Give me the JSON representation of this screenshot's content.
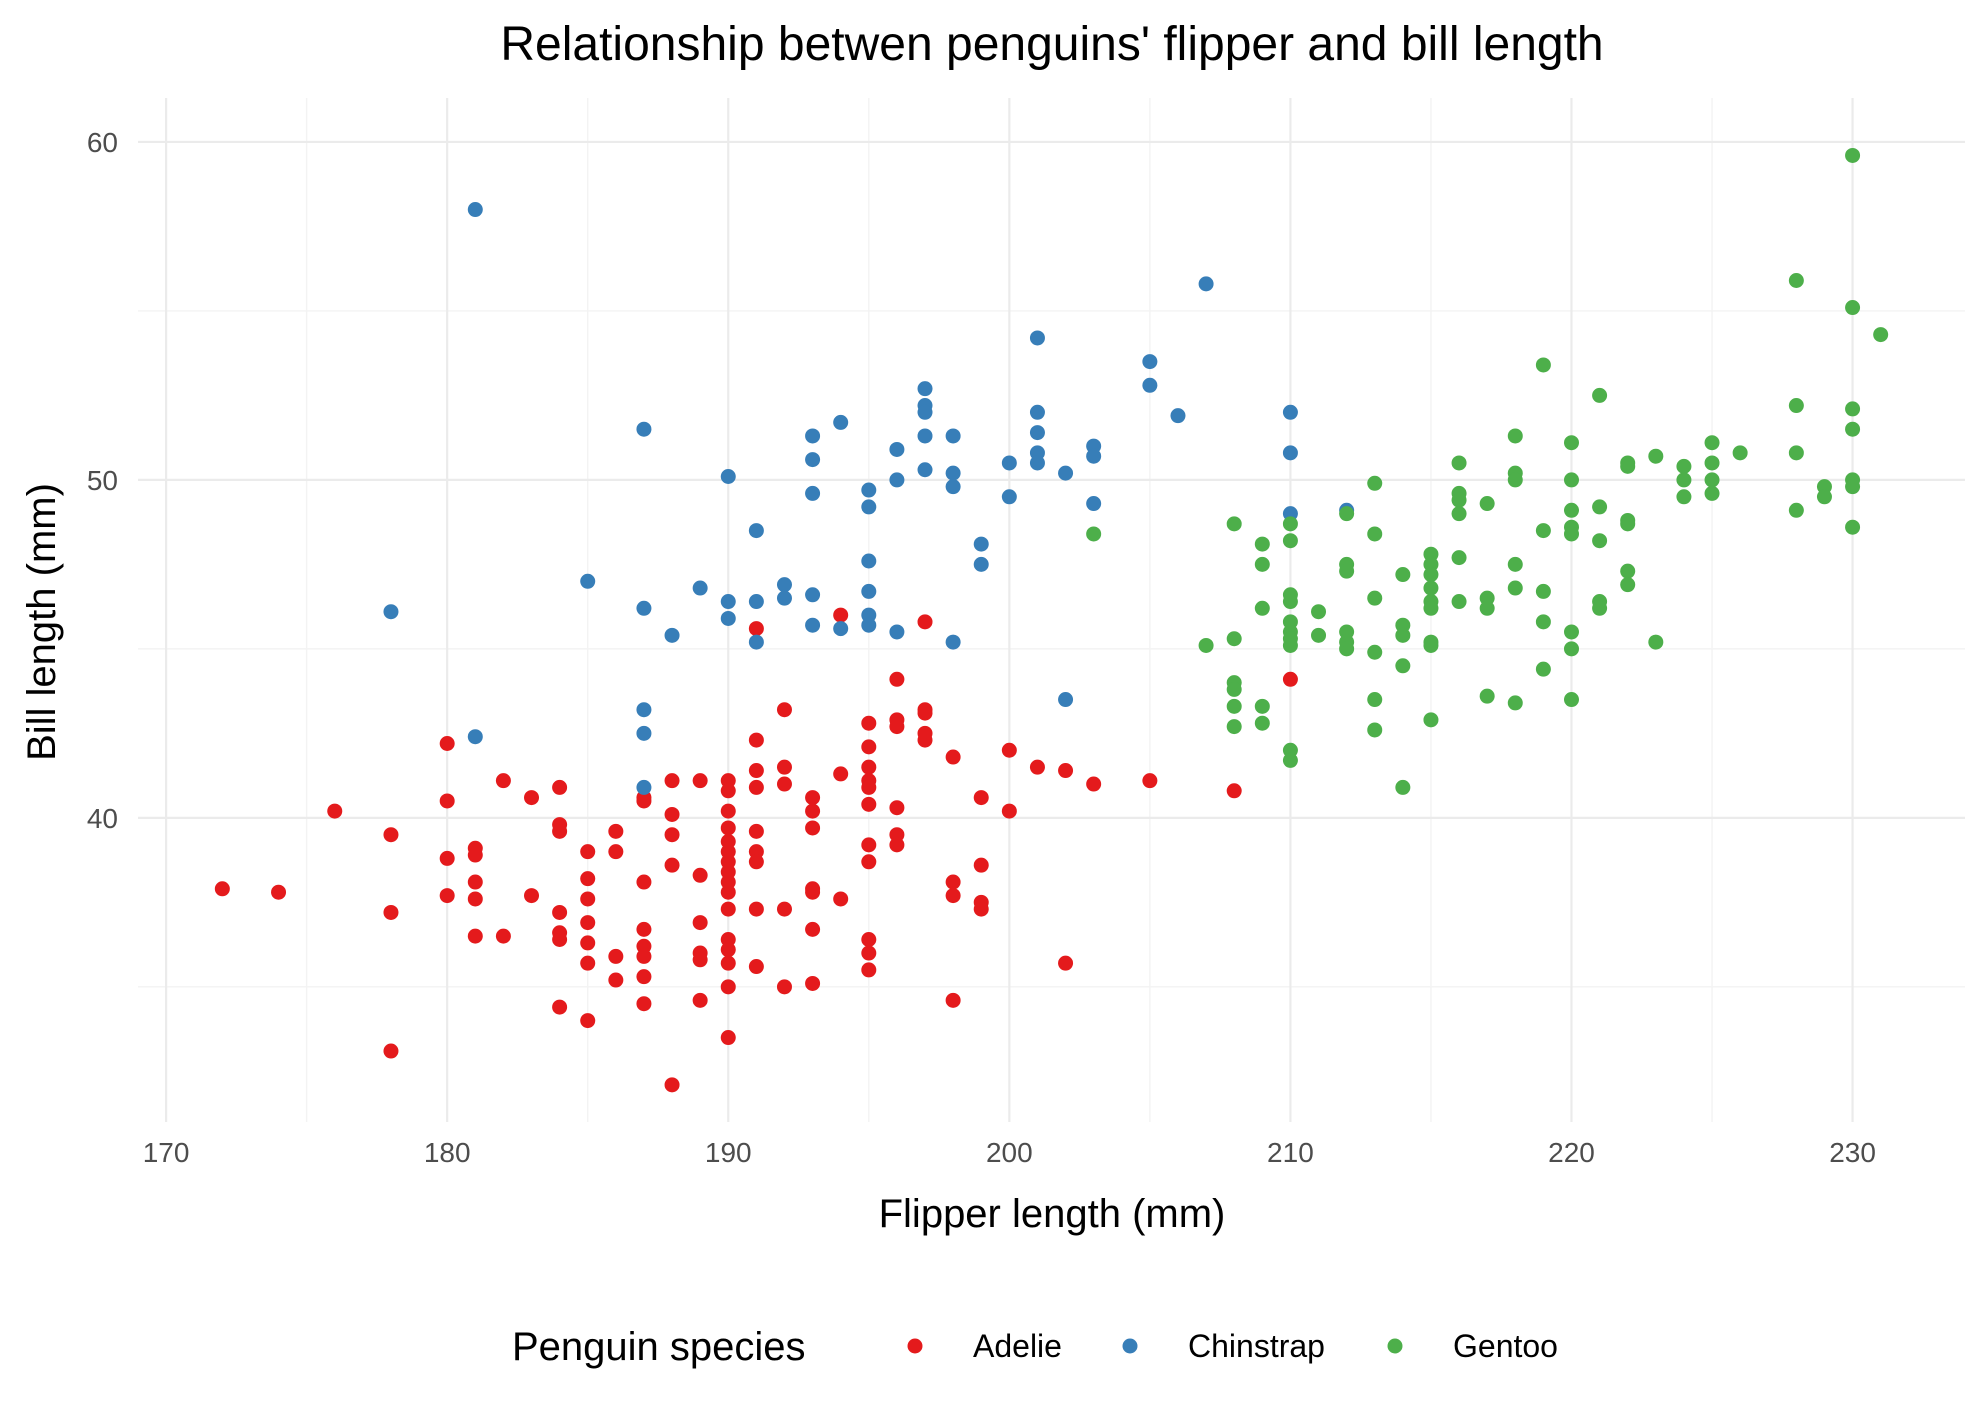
{
  "chart_data": {
    "type": "scatter",
    "title": "Relationship betwen penguins' flipper and bill length",
    "xlabel": "Flipper length (mm)",
    "ylabel": "Bill length (mm)",
    "xlim": [
      169,
      234
    ],
    "ylim": [
      31,
      61.3
    ],
    "x_ticks": [
      170,
      180,
      190,
      200,
      210,
      220,
      230
    ],
    "y_ticks": [
      40,
      50,
      60
    ],
    "grid": true,
    "legend": {
      "title": "Penguin species",
      "position": "bottom"
    },
    "series": [
      {
        "name": "Adelie",
        "color": "#e41a1c",
        "points": [
          [
            172,
            37.9
          ],
          [
            174,
            37.8
          ],
          [
            176,
            40.2
          ],
          [
            178,
            39.5
          ],
          [
            178,
            37.2
          ],
          [
            178,
            33.1
          ],
          [
            180,
            42.2
          ],
          [
            180,
            40.5
          ],
          [
            180,
            38.8
          ],
          [
            180,
            37.7
          ],
          [
            181,
            39.1
          ],
          [
            181,
            38.9
          ],
          [
            181,
            38.1
          ],
          [
            181,
            37.6
          ],
          [
            181,
            36.5
          ],
          [
            182,
            41.1
          ],
          [
            182,
            36.5
          ],
          [
            183,
            40.6
          ],
          [
            183,
            37.7
          ],
          [
            184,
            40.9
          ],
          [
            184,
            39.8
          ],
          [
            184,
            39.6
          ],
          [
            184,
            37.2
          ],
          [
            184,
            36.6
          ],
          [
            184,
            36.4
          ],
          [
            184,
            34.4
          ],
          [
            185,
            39.0
          ],
          [
            185,
            38.2
          ],
          [
            185,
            37.6
          ],
          [
            185,
            36.9
          ],
          [
            185,
            36.3
          ],
          [
            185,
            35.7
          ],
          [
            185,
            34.0
          ],
          [
            186,
            39.6
          ],
          [
            186,
            39.0
          ],
          [
            186,
            35.9
          ],
          [
            186,
            35.2
          ],
          [
            187,
            40.6
          ],
          [
            187,
            40.5
          ],
          [
            187,
            38.1
          ],
          [
            187,
            36.7
          ],
          [
            187,
            36.2
          ],
          [
            187,
            35.9
          ],
          [
            187,
            35.3
          ],
          [
            187,
            34.5
          ],
          [
            188,
            41.1
          ],
          [
            188,
            40.1
          ],
          [
            188,
            39.5
          ],
          [
            188,
            38.6
          ],
          [
            188,
            32.1
          ],
          [
            189,
            41.1
          ],
          [
            189,
            38.3
          ],
          [
            189,
            36.9
          ],
          [
            189,
            36.0
          ],
          [
            189,
            35.8
          ],
          [
            189,
            34.6
          ],
          [
            190,
            41.1
          ],
          [
            190,
            40.8
          ],
          [
            190,
            40.2
          ],
          [
            190,
            39.7
          ],
          [
            190,
            39.3
          ],
          [
            190,
            39.0
          ],
          [
            190,
            38.7
          ],
          [
            190,
            38.4
          ],
          [
            190,
            38.1
          ],
          [
            190,
            37.8
          ],
          [
            190,
            37.3
          ],
          [
            190,
            36.4
          ],
          [
            190,
            36.1
          ],
          [
            190,
            35.7
          ],
          [
            190,
            35.0
          ],
          [
            190,
            33.5
          ],
          [
            191,
            45.6
          ],
          [
            191,
            42.3
          ],
          [
            191,
            41.4
          ],
          [
            191,
            40.9
          ],
          [
            191,
            39.6
          ],
          [
            191,
            39.0
          ],
          [
            191,
            38.7
          ],
          [
            191,
            37.3
          ],
          [
            191,
            35.6
          ],
          [
            192,
            43.2
          ],
          [
            192,
            41.5
          ],
          [
            192,
            41.0
          ],
          [
            192,
            37.3
          ],
          [
            192,
            35.0
          ],
          [
            193,
            40.6
          ],
          [
            193,
            40.2
          ],
          [
            193,
            39.7
          ],
          [
            193,
            37.9
          ],
          [
            193,
            37.8
          ],
          [
            193,
            36.7
          ],
          [
            193,
            35.1
          ],
          [
            194,
            46.0
          ],
          [
            194,
            41.3
          ],
          [
            194,
            37.6
          ],
          [
            195,
            42.8
          ],
          [
            195,
            42.1
          ],
          [
            195,
            41.5
          ],
          [
            195,
            41.1
          ],
          [
            195,
            40.9
          ],
          [
            195,
            40.4
          ],
          [
            195,
            39.2
          ],
          [
            195,
            38.7
          ],
          [
            195,
            36.4
          ],
          [
            195,
            36.0
          ],
          [
            195,
            35.5
          ],
          [
            196,
            44.1
          ],
          [
            196,
            42.9
          ],
          [
            196,
            42.7
          ],
          [
            196,
            40.3
          ],
          [
            196,
            39.5
          ],
          [
            196,
            39.2
          ],
          [
            197,
            45.8
          ],
          [
            197,
            43.2
          ],
          [
            197,
            43.1
          ],
          [
            197,
            42.5
          ],
          [
            197,
            42.3
          ],
          [
            198,
            41.8
          ],
          [
            198,
            38.1
          ],
          [
            198,
            37.7
          ],
          [
            198,
            34.6
          ],
          [
            199,
            40.6
          ],
          [
            199,
            38.6
          ],
          [
            199,
            37.5
          ],
          [
            199,
            37.3
          ],
          [
            200,
            42.0
          ],
          [
            200,
            40.2
          ],
          [
            201,
            41.5
          ],
          [
            202,
            41.4
          ],
          [
            202,
            35.7
          ],
          [
            203,
            41.0
          ],
          [
            205,
            41.1
          ],
          [
            208,
            40.8
          ],
          [
            210,
            44.1
          ]
        ]
      },
      {
        "name": "Chinstrap",
        "color": "#377eb8",
        "points": [
          [
            178,
            46.1
          ],
          [
            181,
            58.0
          ],
          [
            181,
            42.4
          ],
          [
            185,
            47.0
          ],
          [
            187,
            51.5
          ],
          [
            187,
            46.2
          ],
          [
            187,
            43.2
          ],
          [
            187,
            42.5
          ],
          [
            187,
            40.9
          ],
          [
            188,
            45.4
          ],
          [
            189,
            46.8
          ],
          [
            190,
            50.1
          ],
          [
            190,
            46.4
          ],
          [
            190,
            45.9
          ],
          [
            191,
            48.5
          ],
          [
            191,
            46.4
          ],
          [
            191,
            45.2
          ],
          [
            192,
            46.9
          ],
          [
            192,
            46.5
          ],
          [
            193,
            51.3
          ],
          [
            193,
            50.6
          ],
          [
            193,
            49.6
          ],
          [
            193,
            46.6
          ],
          [
            193,
            45.7
          ],
          [
            194,
            51.7
          ],
          [
            194,
            45.6
          ],
          [
            195,
            49.7
          ],
          [
            195,
            49.2
          ],
          [
            195,
            47.6
          ],
          [
            195,
            46.7
          ],
          [
            195,
            46.0
          ],
          [
            195,
            45.7
          ],
          [
            196,
            50.9
          ],
          [
            196,
            50.0
          ],
          [
            196,
            45.5
          ],
          [
            197,
            52.7
          ],
          [
            197,
            52.2
          ],
          [
            197,
            52.0
          ],
          [
            197,
            51.3
          ],
          [
            197,
            50.3
          ],
          [
            198,
            51.3
          ],
          [
            198,
            50.2
          ],
          [
            198,
            49.8
          ],
          [
            198,
            45.2
          ],
          [
            199,
            48.1
          ],
          [
            199,
            47.5
          ],
          [
            200,
            50.5
          ],
          [
            200,
            49.5
          ],
          [
            201,
            54.2
          ],
          [
            201,
            52.0
          ],
          [
            201,
            51.4
          ],
          [
            201,
            50.8
          ],
          [
            201,
            50.5
          ],
          [
            202,
            50.2
          ],
          [
            202,
            43.5
          ],
          [
            203,
            51.0
          ],
          [
            203,
            50.7
          ],
          [
            203,
            49.3
          ],
          [
            205,
            53.5
          ],
          [
            205,
            52.8
          ],
          [
            206,
            51.9
          ],
          [
            207,
            55.8
          ],
          [
            210,
            52.0
          ],
          [
            210,
            50.8
          ],
          [
            210,
            49.0
          ],
          [
            212,
            49.1
          ]
        ]
      },
      {
        "name": "Gentoo",
        "color": "#4daf4a",
        "points": [
          [
            203,
            48.4
          ],
          [
            207,
            45.1
          ],
          [
            208,
            48.7
          ],
          [
            208,
            45.3
          ],
          [
            208,
            44.0
          ],
          [
            208,
            43.8
          ],
          [
            208,
            43.3
          ],
          [
            208,
            42.7
          ],
          [
            209,
            48.1
          ],
          [
            209,
            47.5
          ],
          [
            209,
            46.2
          ],
          [
            209,
            43.3
          ],
          [
            209,
            42.8
          ],
          [
            210,
            48.7
          ],
          [
            210,
            48.2
          ],
          [
            210,
            46.6
          ],
          [
            210,
            46.4
          ],
          [
            210,
            45.8
          ],
          [
            210,
            45.5
          ],
          [
            210,
            45.3
          ],
          [
            210,
            45.1
          ],
          [
            210,
            42.0
          ],
          [
            210,
            41.7
          ],
          [
            211,
            46.1
          ],
          [
            211,
            45.4
          ],
          [
            212,
            49.0
          ],
          [
            212,
            47.5
          ],
          [
            212,
            47.3
          ],
          [
            212,
            45.5
          ],
          [
            212,
            45.2
          ],
          [
            212,
            45.0
          ],
          [
            213,
            49.9
          ],
          [
            213,
            48.4
          ],
          [
            213,
            46.5
          ],
          [
            213,
            44.9
          ],
          [
            213,
            43.5
          ],
          [
            213,
            42.6
          ],
          [
            214,
            47.2
          ],
          [
            214,
            45.7
          ],
          [
            214,
            45.4
          ],
          [
            214,
            44.5
          ],
          [
            214,
            40.9
          ],
          [
            215,
            47.8
          ],
          [
            215,
            47.5
          ],
          [
            215,
            47.2
          ],
          [
            215,
            46.8
          ],
          [
            215,
            46.4
          ],
          [
            215,
            46.2
          ],
          [
            215,
            45.2
          ],
          [
            215,
            45.1
          ],
          [
            215,
            42.9
          ],
          [
            216,
            50.5
          ],
          [
            216,
            49.6
          ],
          [
            216,
            49.4
          ],
          [
            216,
            49.0
          ],
          [
            216,
            47.7
          ],
          [
            216,
            46.4
          ],
          [
            217,
            49.3
          ],
          [
            217,
            46.5
          ],
          [
            217,
            46.2
          ],
          [
            217,
            43.6
          ],
          [
            218,
            51.3
          ],
          [
            218,
            50.2
          ],
          [
            218,
            50.0
          ],
          [
            218,
            47.5
          ],
          [
            218,
            46.8
          ],
          [
            218,
            43.4
          ],
          [
            219,
            53.4
          ],
          [
            219,
            48.5
          ],
          [
            219,
            46.7
          ],
          [
            219,
            45.8
          ],
          [
            219,
            44.4
          ],
          [
            220,
            51.1
          ],
          [
            220,
            50.0
          ],
          [
            220,
            49.1
          ],
          [
            220,
            48.6
          ],
          [
            220,
            48.4
          ],
          [
            220,
            45.5
          ],
          [
            220,
            45.0
          ],
          [
            220,
            43.5
          ],
          [
            221,
            52.5
          ],
          [
            221,
            49.2
          ],
          [
            221,
            48.2
          ],
          [
            221,
            46.4
          ],
          [
            221,
            46.2
          ],
          [
            222,
            50.5
          ],
          [
            222,
            50.4
          ],
          [
            222,
            48.8
          ],
          [
            222,
            48.7
          ],
          [
            222,
            47.3
          ],
          [
            222,
            46.9
          ],
          [
            223,
            50.7
          ],
          [
            223,
            45.2
          ],
          [
            224,
            50.4
          ],
          [
            224,
            50.0
          ],
          [
            224,
            49.5
          ],
          [
            225,
            51.1
          ],
          [
            225,
            50.5
          ],
          [
            225,
            50.0
          ],
          [
            225,
            49.6
          ],
          [
            226,
            50.8
          ],
          [
            228,
            55.9
          ],
          [
            228,
            52.2
          ],
          [
            228,
            50.8
          ],
          [
            228,
            49.1
          ],
          [
            229,
            49.8
          ],
          [
            229,
            49.5
          ],
          [
            230,
            59.6
          ],
          [
            230,
            55.1
          ],
          [
            230,
            52.1
          ],
          [
            230,
            51.5
          ],
          [
            230,
            50.0
          ],
          [
            230,
            49.8
          ],
          [
            230,
            48.6
          ],
          [
            231,
            54.3
          ]
        ]
      }
    ]
  }
}
